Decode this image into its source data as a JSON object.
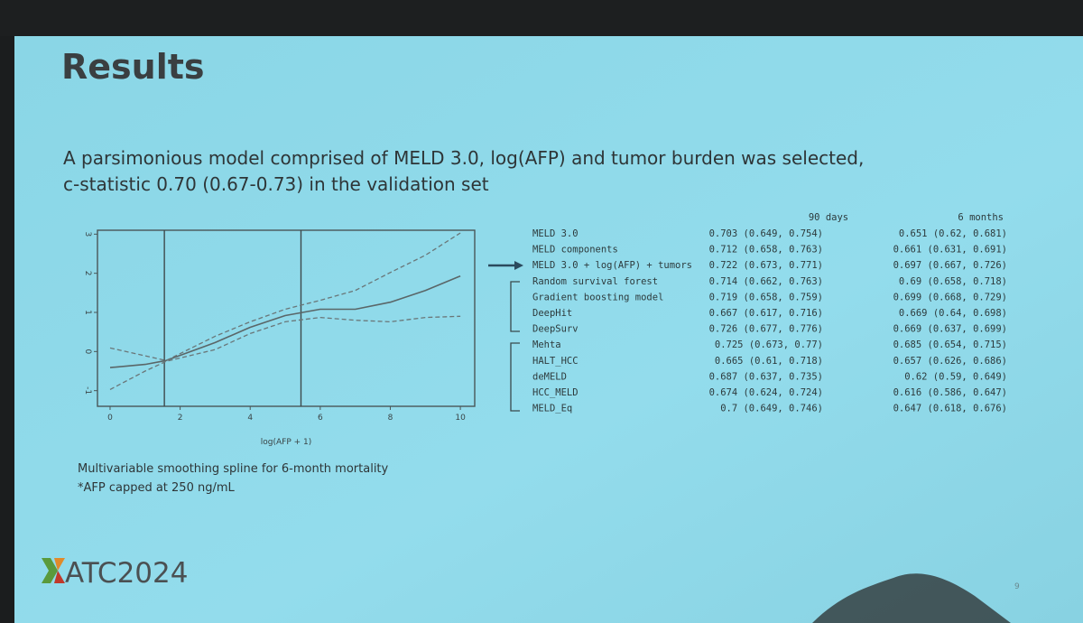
{
  "slide": {
    "title": "Results",
    "text_lines": [
      "A parsimonious model comprised of MELD 3.0, log(AFP) and tumor burden was selected,",
      "c-statistic 0.70 (0.67-0.73) in the validation set"
    ],
    "caption_lines": [
      "Multivariable smoothing spline for 6-month mortality",
      "*AFP capped at 250 ng/mL"
    ],
    "logo_text": "ATC2024",
    "page_number": "9"
  },
  "table": {
    "headers": [
      "90 days",
      "6 months"
    ],
    "rows": [
      [
        "MELD 3.0",
        "0.703 (0.649, 0.754)",
        "0.651 (0.62, 0.681)"
      ],
      [
        "MELD components",
        "0.712 (0.658, 0.763)",
        "0.661 (0.631, 0.691)"
      ],
      [
        "MELD 3.0 + log(AFP) + tumors",
        "0.722 (0.673, 0.771)",
        "0.697 (0.667, 0.726)"
      ],
      [
        "Random survival forest",
        "0.714 (0.662, 0.763)",
        "0.69 (0.658, 0.718)"
      ],
      [
        "Gradient boosting model",
        "0.719 (0.658, 0.759)",
        "0.699 (0.668, 0.729)"
      ],
      [
        "DeepHit",
        "0.667 (0.617, 0.716)",
        "0.669 (0.64, 0.698)"
      ],
      [
        "DeepSurv",
        "0.726 (0.677, 0.776)",
        "0.669 (0.637, 0.699)"
      ],
      [
        "Mehta",
        "0.725 (0.673, 0.77)",
        "0.685 (0.654, 0.715)"
      ],
      [
        "HALT_HCC",
        "0.665 (0.61, 0.718)",
        "0.657 (0.626, 0.686)"
      ],
      [
        "deMELD",
        "0.687 (0.637, 0.735)",
        "0.62 (0.59, 0.649)"
      ],
      [
        "HCC_MELD",
        "0.674 (0.624, 0.724)",
        "0.616 (0.586, 0.647)"
      ],
      [
        "MELD_Eq",
        "0.7 (0.649, 0.746)",
        "0.647 (0.618, 0.676)"
      ]
    ]
  },
  "chart_data": {
    "type": "line",
    "x_label": "log(AFP + 1)",
    "x": [
      0,
      1,
      1.6,
      3,
      4,
      5,
      6,
      7,
      8,
      9,
      10
    ],
    "series": [
      {
        "color": "#5a6668",
        "style": "solid",
        "values": [
          -0.41,
          -0.33,
          -0.23,
          0.23,
          0.62,
          0.92,
          1.08,
          1.08,
          1.26,
          1.56,
          1.93
        ]
      },
      {
        "color": "#6a7678",
        "style": "dashed",
        "values": [
          0.09,
          -0.11,
          -0.23,
          0.39,
          0.76,
          1.08,
          1.31,
          1.56,
          2.02,
          2.46,
          3.03
        ]
      },
      {
        "color": "#6a7678",
        "style": "dashed",
        "values": [
          -0.97,
          -0.5,
          -0.25,
          0.05,
          0.46,
          0.76,
          0.87,
          0.8,
          0.76,
          0.87,
          0.9
        ]
      }
    ],
    "vlines": [
      1.55,
      5.45
    ],
    "xlim": [
      -0.36,
      10.41
    ],
    "ylim": [
      -1.4,
      3.1
    ],
    "xticks": [
      0,
      2,
      4,
      6,
      8,
      10
    ],
    "yticks": [
      -1,
      0,
      1,
      2,
      3
    ]
  }
}
